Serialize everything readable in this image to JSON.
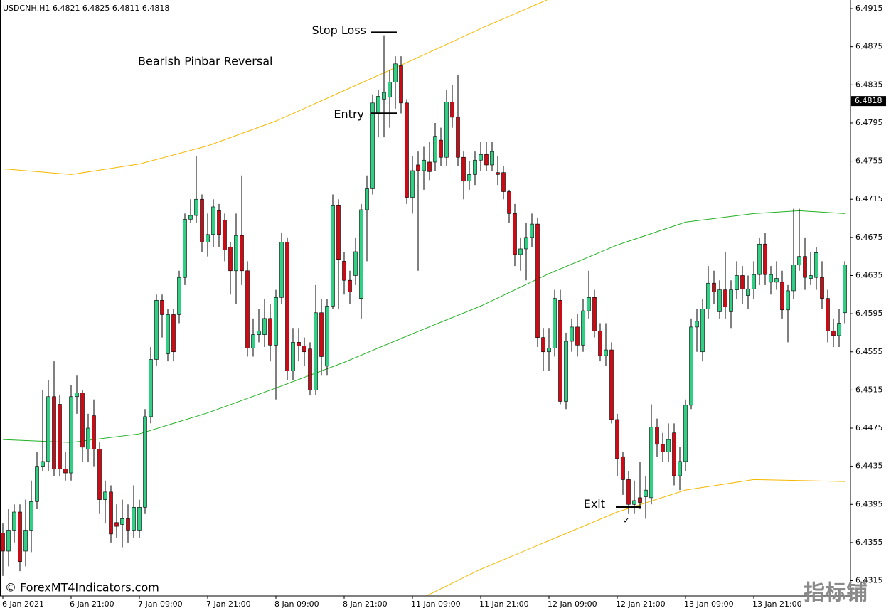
{
  "chart_data": {
    "type": "candlestick",
    "header": "USDCNH,H1  6.4821 6.4825 6.4811 6.4818",
    "note": "Bearish Pinbar Reversal",
    "watermark": "© ForexMT4Indicators.com",
    "logo": "指标铺",
    "up_color": "#2fd083",
    "down_color": "#cf0a14",
    "categories": [
      "6 Jan 2021",
      null,
      null,
      null,
      null,
      null,
      null,
      null,
      null,
      null,
      null,
      null,
      "6 Jan 21:00",
      null,
      null,
      null,
      null,
      null,
      null,
      null,
      null,
      null,
      null,
      null,
      "7 Jan 09:00",
      null,
      null,
      null,
      null,
      null,
      null,
      null,
      null,
      null,
      null,
      null,
      "7 Jan 21:00",
      null,
      null,
      null,
      null,
      null,
      null,
      null,
      null,
      null,
      null,
      null,
      "8 Jan 09:00",
      null,
      null,
      null,
      null,
      null,
      null,
      null,
      null,
      null,
      null,
      null,
      "8 Jan 21:00",
      null,
      null,
      null,
      null,
      null,
      null,
      null,
      null,
      null,
      null,
      null,
      "11 Jan 09:00",
      null,
      null,
      null,
      null,
      null,
      null,
      null,
      null,
      null,
      null,
      null,
      "11 Jan 21:00",
      null,
      null,
      null,
      null,
      null,
      null,
      null,
      null,
      null,
      null,
      null,
      "12 Jan 09:00",
      null,
      null,
      null,
      null,
      null,
      null,
      null,
      null,
      null,
      null,
      null,
      "12 Jan 21:00",
      null,
      null,
      null,
      null,
      null,
      null,
      null,
      null,
      null,
      null,
      null,
      "13 Jan 09:00",
      null,
      null,
      null,
      null,
      null,
      null,
      null,
      null,
      null,
      null,
      null,
      "13 Jan 21:00",
      null,
      null,
      null,
      null,
      null,
      null,
      null,
      null,
      null,
      null,
      null,
      null,
      null,
      null,
      null,
      null
    ],
    "open": [
      6.4365,
      6.4346,
      6.4368,
      6.4387,
      6.4346,
      6.4368,
      6.4398,
      6.4435,
      6.444,
      6.4508,
      6.45,
      6.4432,
      6.4428,
      6.4508,
      6.4512,
      6.4453,
      6.4488,
      6.4453,
      6.44,
      6.4408,
      6.4376,
      6.4374,
      6.438,
      6.4368,
      6.4368,
      6.4392,
      6.4487,
      6.4547,
      6.4609,
      6.4553,
      6.4594,
      6.4594,
      6.4633,
      6.4694,
      6.4698,
      6.4715,
      6.467,
      6.4678,
      6.4703,
      6.4693,
      6.4665,
      6.464,
      6.4677,
      6.464,
      6.4559,
      6.4573,
      6.4573,
      6.459,
      6.4562,
      6.4612,
      6.467,
      6.4535,
      6.4565,
      6.4561,
      6.4558,
      6.4515,
      6.4596,
      6.454,
      6.4603,
      6.4709,
      6.465,
      6.463,
      6.4635,
      6.4611,
      6.4704,
      6.4726,
      6.4805,
      6.482,
      6.4822,
      6.4838,
      6.4855,
      6.4816,
      6.4717,
      6.4751,
      6.4745,
      6.4754,
      6.4754,
      6.4777,
      6.4759,
      6.4817,
      6.4801,
      6.4759,
      6.4734,
      6.4741,
      6.4756,
      6.4762,
      6.4751,
      6.4743,
      6.4743,
      6.4723,
      6.47,
      6.4657,
      6.4663,
      6.4675,
      6.4689,
      6.457,
      6.4555,
      6.4559,
      6.4609,
      6.4503,
      6.4566,
      6.4581,
      6.4562,
      6.4598,
      6.4612,
      6.4577,
      6.4551,
      6.4557,
      6.4484,
      6.4445,
      6.4421,
      6.4395,
      6.4402,
      6.4403,
      6.4402,
      6.4476,
      6.4458,
      6.445,
      6.447,
      6.4425,
      6.444,
      6.4499,
      6.4581,
      6.4555,
      6.46,
      6.4627,
      6.4597,
      6.462,
      6.4597,
      6.462,
      6.4635,
      6.4614,
      6.4621,
      6.4636,
      6.4668,
      6.4628,
      6.4628,
      6.4628,
      6.4599,
      6.4619,
      6.4646,
      6.4655,
      6.4632,
      6.4633,
      6.4633,
      6.4611,
      6.4577,
      6.4572,
      6.4596
    ],
    "high": [
      6.4375,
      6.439,
      6.4395,
      6.4395,
      6.44,
      6.442,
      6.445,
      6.4515,
      6.4525,
      6.4545,
      6.451,
      6.445,
      6.452,
      6.453,
      6.4515,
      6.449,
      6.4505,
      6.446,
      6.442,
      6.4415,
      6.4395,
      6.44,
      6.4395,
      6.4415,
      6.44,
      6.4495,
      6.456,
      6.4615,
      6.4615,
      6.46,
      6.46,
      6.464,
      6.47,
      6.4715,
      6.476,
      6.472,
      6.47,
      6.4715,
      6.471,
      6.47,
      6.467,
      6.47,
      6.474,
      6.465,
      6.459,
      6.46,
      6.461,
      6.4605,
      6.462,
      6.468,
      6.4675,
      6.458,
      6.458,
      6.457,
      6.4565,
      6.4625,
      6.461,
      6.461,
      6.472,
      6.4715,
      6.466,
      6.464,
      6.4675,
      6.471,
      6.474,
      6.4825,
      6.483,
      6.4887,
      6.485,
      6.4865,
      6.4865,
      6.482,
      6.476,
      6.4765,
      6.477,
      6.4775,
      6.4795,
      6.479,
      6.483,
      6.4835,
      6.4845,
      6.4765,
      6.4755,
      6.4765,
      6.4775,
      6.4775,
      6.4775,
      6.476,
      6.475,
      6.4725,
      6.471,
      6.4675,
      6.469,
      6.47,
      6.4695,
      6.458,
      6.458,
      6.462,
      6.462,
      6.4575,
      6.459,
      6.4595,
      6.461,
      6.464,
      6.462,
      6.4585,
      6.4585,
      6.4565,
      6.449,
      6.445,
      6.443,
      6.442,
      6.444,
      6.4425,
      6.45,
      6.4485,
      6.447,
      6.448,
      6.448,
      6.4455,
      6.4505,
      6.459,
      6.46,
      6.461,
      6.4645,
      6.464,
      6.463,
      6.466,
      6.463,
      6.465,
      6.4645,
      6.4635,
      6.465,
      6.4675,
      6.468,
      6.4645,
      6.465,
      6.464,
      6.4625,
      6.4705,
      6.4705,
      6.4675,
      6.466,
      6.4665,
      6.465,
      6.462,
      6.459,
      6.46,
      6.465
    ],
    "low": [
      6.432,
      6.433,
      6.4355,
      6.4325,
      6.433,
      6.4345,
      6.439,
      6.443,
      6.443,
      6.4425,
      6.4425,
      6.442,
      6.442,
      6.449,
      6.444,
      6.444,
      6.4435,
      6.4385,
      6.4375,
      6.4355,
      6.436,
      6.435,
      6.4355,
      6.436,
      6.436,
      6.4385,
      6.448,
      6.454,
      6.457,
      6.4545,
      6.4545,
      6.4585,
      6.4625,
      6.469,
      6.469,
      6.466,
      6.4655,
      6.4665,
      6.4665,
      6.465,
      6.4615,
      6.4605,
      6.4625,
      6.455,
      6.455,
      6.4565,
      6.456,
      6.4545,
      6.4505,
      6.4605,
      6.4525,
      6.4525,
      6.4545,
      6.454,
      6.451,
      6.451,
      6.453,
      6.453,
      6.46,
      6.46,
      6.4615,
      6.4605,
      6.4625,
      6.459,
      6.465,
      6.472,
      6.478,
      6.478,
      6.479,
      6.481,
      6.4805,
      6.471,
      6.47,
      6.464,
      6.4725,
      6.4735,
      6.4745,
      6.475,
      6.475,
      6.479,
      6.475,
      6.4715,
      6.4725,
      6.473,
      6.4745,
      6.4745,
      6.4745,
      6.473,
      6.4715,
      6.469,
      6.4645,
      6.464,
      6.463,
      6.4665,
      6.456,
      6.4535,
      6.4535,
      6.455,
      6.45,
      6.4495,
      6.4555,
      6.455,
      6.4555,
      6.459,
      6.457,
      6.4545,
      6.454,
      6.448,
      6.4425,
      6.4405,
      6.4385,
      6.4385,
      6.439,
      6.438,
      6.4395,
      6.4445,
      6.444,
      6.444,
      6.4415,
      6.441,
      6.443,
      6.4495,
      6.4555,
      6.4545,
      6.459,
      6.4605,
      6.459,
      6.459,
      6.458,
      6.461,
      6.4605,
      6.46,
      6.461,
      6.4625,
      6.4625,
      6.4615,
      6.462,
      6.459,
      6.4565,
      6.461,
      6.464,
      6.462,
      6.4625,
      6.462,
      6.46,
      6.4565,
      6.456,
      6.456,
      6.4585
    ],
    "close": [
      6.4346,
      6.4368,
      6.4387,
      6.4335,
      6.4368,
      6.4398,
      6.4435,
      6.444,
      6.4508,
      6.4432,
      6.4432,
      6.4428,
      6.4508,
      6.4512,
      6.4455,
      6.4475,
      6.4453,
      6.44,
      6.4408,
      6.4364,
      6.4372,
      6.438,
      6.4368,
      6.4392,
      6.4392,
      6.4487,
      6.4547,
      6.4609,
      6.4594,
      6.4594,
      6.4555,
      6.4633,
      6.4694,
      6.4698,
      6.4715,
      6.467,
      6.4678,
      6.4707,
      6.4678,
      6.4662,
      6.464,
      6.4677,
      6.464,
      6.4559,
      6.4573,
      6.4577,
      6.459,
      6.4562,
      6.4612,
      6.467,
      6.4535,
      6.4565,
      6.4561,
      6.4555,
      6.4515,
      6.4596,
      6.455,
      6.4603,
      6.4709,
      6.4652,
      6.463,
      6.4618,
      6.466,
      6.4704,
      6.4726,
      6.4816,
      6.4823,
      6.4827,
      6.4838,
      6.4857,
      6.4816,
      6.4717,
      6.4745,
      6.4745,
      6.4756,
      6.4744,
      6.4781,
      6.4759,
      6.4817,
      6.4801,
      6.4759,
      6.4734,
      6.4741,
      6.4756,
      6.4762,
      6.4751,
      6.4765,
      6.4741,
      6.4723,
      6.47,
      6.4657,
      6.4663,
      6.4675,
      6.4689,
      6.457,
      6.4555,
      6.4559,
      6.4611,
      6.4503,
      6.4566,
      6.4581,
      6.4562,
      6.4598,
      6.4612,
      6.4577,
      6.4551,
      6.4557,
      6.4484,
      6.4443,
      6.4421,
      6.4395,
      6.4399,
      6.4397,
      6.441,
      6.4476,
      6.4458,
      6.445,
      6.4463,
      6.4425,
      6.444,
      6.4499,
      6.4581,
      6.4587,
      6.46,
      6.4627,
      6.4618,
      6.462,
      6.4602,
      6.462,
      6.4635,
      6.4621,
      6.4621,
      6.4636,
      6.4668,
      6.4636,
      6.4636,
      6.4632,
      6.4599,
      6.4619,
      6.4646,
      6.4655,
      6.4633,
      6.4635,
      6.4659,
      6.4611,
      6.4577,
      6.4572,
      6.4585,
      6.4646
    ],
    "bands": [
      {
        "color": "#f5b800",
        "x": [
          0,
          12,
          24,
          36,
          48,
          60,
          72,
          84,
          96
        ],
        "values": [
          6.4747,
          6.4741,
          6.4752,
          6.4771,
          6.4797,
          6.4829,
          6.4861,
          6.4894,
          6.4925
        ]
      },
      {
        "color": "#22b022",
        "x": [
          0,
          12,
          24,
          36,
          48,
          60,
          72,
          84,
          96,
          108,
          120,
          132,
          140,
          148
        ],
        "values": [
          6.4463,
          6.446,
          6.4469,
          6.4491,
          6.4517,
          6.4544,
          6.4574,
          6.4603,
          6.4637,
          6.4667,
          6.4691,
          6.47,
          6.4703,
          6.47
        ]
      },
      {
        "color": "#f5b800",
        "x": [
          72,
          84,
          96,
          108,
          120,
          132,
          148
        ],
        "values": [
          6.4292,
          6.4327,
          6.4357,
          6.4387,
          6.441,
          6.4421,
          6.4419
        ]
      }
    ],
    "annotations": [
      {
        "text": "Stop Loss",
        "level": 6.489
      },
      {
        "text": "Entry",
        "level": 6.4805
      },
      {
        "text": "Exit",
        "level": 6.4392
      }
    ],
    "price_tag": 6.4818,
    "ylim": [
      6.4299,
      6.4924
    ],
    "yticks": [
      6.4915,
      6.4875,
      6.4835,
      6.4795,
      6.4755,
      6.4715,
      6.4675,
      6.4635,
      6.4595,
      6.4555,
      6.4515,
      6.4475,
      6.4435,
      6.4395,
      6.4355,
      6.4315
    ]
  }
}
